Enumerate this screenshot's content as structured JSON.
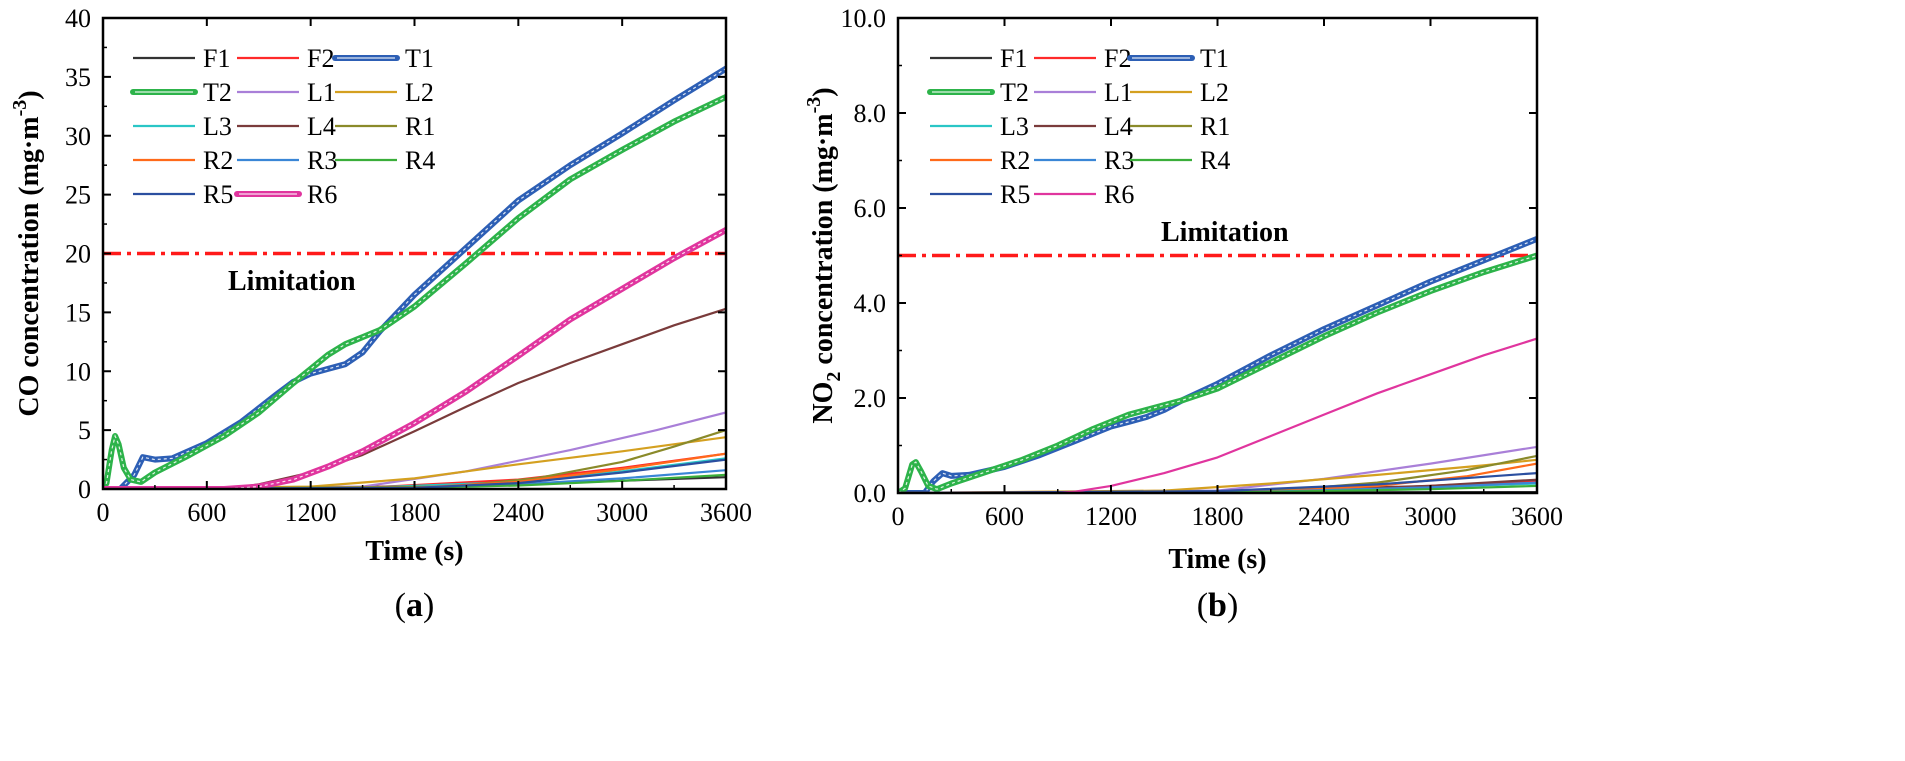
{
  "chart_data": [
    {
      "type": "line",
      "panel_label": "(a)",
      "panel_letter": "a",
      "xlabel": "Time (s)",
      "ylabel": "CO concentration (mg·m",
      "ylabel_sup": "-3",
      "ylabel_end": ")",
      "xlim": [
        0,
        3600
      ],
      "ylim": [
        0,
        40
      ],
      "xticks": [
        0,
        600,
        1200,
        1800,
        2400,
        3000,
        3600
      ],
      "xtick_labels": [
        "0",
        "600",
        "1200",
        "1800",
        "2400",
        "3000",
        "3600"
      ],
      "yticks": [
        0,
        5,
        10,
        15,
        20,
        25,
        30,
        35,
        40
      ],
      "ytick_labels": [
        "0",
        "5",
        "10",
        "15",
        "20",
        "25",
        "30",
        "35",
        "40"
      ],
      "limitation": {
        "value": 20,
        "label": "Limitation",
        "color": "#ff1a1a"
      },
      "series": [
        {
          "name": "F1",
          "color": "#333333",
          "x": [
            0,
            1200,
            2400,
            3600
          ],
          "y": [
            0,
            0.1,
            0.4,
            1.0
          ]
        },
        {
          "name": "F2",
          "color": "#ff2a2a",
          "x": [
            0,
            1500,
            2400,
            3000,
            3600
          ],
          "y": [
            0,
            0.1,
            0.8,
            1.8,
            3.0
          ]
        },
        {
          "name": "T1",
          "color": "#2d5fb5",
          "bold": true,
          "x": [
            0,
            100,
            180,
            230,
            300,
            400,
            600,
            800,
            1000,
            1100,
            1200,
            1300,
            1400,
            1500,
            1600,
            1800,
            2100,
            2400,
            2700,
            3000,
            3300,
            3600
          ],
          "y": [
            0,
            0,
            1.2,
            2.7,
            2.5,
            2.6,
            3.9,
            5.7,
            8.0,
            9.1,
            9.8,
            10.2,
            10.6,
            11.6,
            13.4,
            16.5,
            20.5,
            24.5,
            27.5,
            30.2,
            33.0,
            35.7
          ]
        },
        {
          "name": "T2",
          "color": "#2db34a",
          "bold": true,
          "x": [
            0,
            20,
            50,
            70,
            90,
            120,
            160,
            220,
            300,
            500,
            700,
            900,
            1100,
            1200,
            1300,
            1400,
            1500,
            1600,
            1800,
            2100,
            2400,
            2700,
            3000,
            3300,
            3600
          ],
          "y": [
            0,
            0.5,
            3.3,
            4.5,
            3.8,
            1.8,
            0.8,
            0.6,
            1.4,
            2.9,
            4.5,
            6.5,
            9.0,
            10.2,
            11.4,
            12.3,
            12.9,
            13.5,
            15.5,
            19.2,
            23.0,
            26.3,
            28.8,
            31.2,
            33.3
          ]
        },
        {
          "name": "L1",
          "color": "#a97fd8",
          "x": [
            0,
            1500,
            2100,
            2700,
            3200,
            3600
          ],
          "y": [
            0,
            0.2,
            1.5,
            3.3,
            5.0,
            6.5
          ]
        },
        {
          "name": "L2",
          "color": "#d4a020",
          "x": [
            0,
            1200,
            1800,
            2400,
            3000,
            3600
          ],
          "y": [
            0,
            0.2,
            0.9,
            2.1,
            3.2,
            4.4
          ]
        },
        {
          "name": "L3",
          "color": "#2ac6c6",
          "x": [
            0,
            1500,
            2400,
            3000,
            3600
          ],
          "y": [
            0,
            0.1,
            0.6,
            1.5,
            2.6
          ]
        },
        {
          "name": "L4",
          "color": "#7a3b3b",
          "x": [
            0,
            700,
            900,
            1200,
            1500,
            1800,
            2100,
            2400,
            2700,
            3000,
            3300,
            3600
          ],
          "y": [
            0,
            0,
            0.4,
            1.4,
            2.9,
            4.9,
            7.0,
            9.0,
            10.7,
            12.3,
            13.9,
            15.3
          ]
        },
        {
          "name": "R1",
          "color": "#8a8a2a",
          "x": [
            0,
            2000,
            2500,
            3000,
            3300,
            3600
          ],
          "y": [
            0,
            0.2,
            0.9,
            2.3,
            3.6,
            5.0
          ]
        },
        {
          "name": "R2",
          "color": "#ff6a1a",
          "x": [
            0,
            1800,
            2400,
            3000,
            3600
          ],
          "y": [
            0,
            0.1,
            0.6,
            1.7,
            3.0
          ]
        },
        {
          "name": "R3",
          "color": "#3a86d6",
          "x": [
            0,
            1800,
            2400,
            3000,
            3600
          ],
          "y": [
            0,
            0.1,
            0.4,
            0.9,
            1.6
          ]
        },
        {
          "name": "R4",
          "color": "#3aae3a",
          "x": [
            0,
            1800,
            2400,
            3000,
            3600
          ],
          "y": [
            0,
            0.1,
            0.3,
            0.7,
            1.2
          ]
        },
        {
          "name": "R5",
          "color": "#2b4fa0",
          "x": [
            0,
            1800,
            2400,
            3000,
            3600
          ],
          "y": [
            0,
            0.1,
            0.5,
            1.4,
            2.5
          ]
        },
        {
          "name": "R6",
          "color": "#e0359e",
          "bold": true,
          "x": [
            0,
            700,
            900,
            1100,
            1300,
            1500,
            1800,
            2100,
            2400,
            2700,
            3000,
            3300,
            3600
          ],
          "y": [
            0,
            0,
            0.2,
            0.8,
            1.9,
            3.2,
            5.6,
            8.3,
            11.3,
            14.4,
            17.0,
            19.6,
            22.0
          ]
        }
      ]
    },
    {
      "type": "line",
      "panel_label": "(b)",
      "panel_letter": "b",
      "xlabel": "Time (s)",
      "ylabel": "NO",
      "ylabel_sub": "2",
      "ylabel_end": " concentration (mg·m",
      "ylabel_sup": "-3",
      "ylabel_close": ")",
      "xlim": [
        0,
        3600
      ],
      "ylim": [
        0,
        10
      ],
      "xticks": [
        0,
        600,
        1200,
        1800,
        2400,
        3000,
        3600
      ],
      "xtick_labels": [
        "0",
        "600",
        "1200",
        "1800",
        "2400",
        "3000",
        "3600"
      ],
      "yticks": [
        0,
        2,
        4,
        6,
        8,
        10
      ],
      "ytick_labels": [
        "0.0",
        "2.0",
        "4.0",
        "6.0",
        "8.0",
        "10.0"
      ],
      "limitation": {
        "value": 5,
        "label": "Limitation",
        "color": "#ff1a1a"
      },
      "series": [
        {
          "name": "F1",
          "color": "#333333",
          "x": [
            0,
            1800,
            3600
          ],
          "y": [
            0,
            0.01,
            0.02
          ]
        },
        {
          "name": "F2",
          "color": "#ff2a2a",
          "x": [
            0,
            1800,
            2700,
            3600
          ],
          "y": [
            0,
            0.02,
            0.1,
            0.25
          ]
        },
        {
          "name": "T1",
          "color": "#2d5fb5",
          "bold": true,
          "x": [
            0,
            150,
            200,
            250,
            300,
            400,
            600,
            800,
            1000,
            1100,
            1200,
            1300,
            1400,
            1500,
            1600,
            1800,
            2100,
            2400,
            2700,
            3000,
            3300,
            3600
          ],
          "y": [
            0,
            0,
            0.25,
            0.42,
            0.36,
            0.38,
            0.55,
            0.8,
            1.1,
            1.25,
            1.4,
            1.5,
            1.6,
            1.75,
            1.95,
            2.3,
            2.9,
            3.45,
            3.95,
            4.45,
            4.9,
            5.35
          ]
        },
        {
          "name": "T2",
          "color": "#2db34a",
          "bold": true,
          "x": [
            0,
            40,
            80,
            100,
            130,
            170,
            220,
            300,
            500,
            700,
            900,
            1100,
            1200,
            1300,
            1400,
            1500,
            1600,
            1800,
            2100,
            2400,
            2700,
            3000,
            3300,
            3600
          ],
          "y": [
            0,
            0.1,
            0.6,
            0.65,
            0.45,
            0.15,
            0.08,
            0.2,
            0.45,
            0.7,
            1.0,
            1.35,
            1.5,
            1.65,
            1.75,
            1.85,
            1.95,
            2.2,
            2.75,
            3.3,
            3.8,
            4.25,
            4.65,
            5.0
          ]
        },
        {
          "name": "L1",
          "color": "#a97fd8",
          "x": [
            0,
            1800,
            2400,
            3000,
            3600
          ],
          "y": [
            0,
            0.05,
            0.3,
            0.62,
            0.97
          ]
        },
        {
          "name": "L2",
          "color": "#d4a020",
          "x": [
            0,
            1500,
            2100,
            2700,
            3300,
            3600
          ],
          "y": [
            0,
            0.05,
            0.2,
            0.38,
            0.58,
            0.7
          ]
        },
        {
          "name": "L3",
          "color": "#2ac6c6",
          "x": [
            0,
            1800,
            3000,
            3600
          ],
          "y": [
            0,
            0.02,
            0.12,
            0.2
          ]
        },
        {
          "name": "L4",
          "color": "#7a3b3b",
          "x": [
            0,
            1800,
            3000,
            3600
          ],
          "y": [
            0,
            0.03,
            0.15,
            0.28
          ]
        },
        {
          "name": "R1",
          "color": "#8a8a2a",
          "x": [
            0,
            2100,
            2700,
            3200,
            3600
          ],
          "y": [
            0,
            0.04,
            0.22,
            0.48,
            0.78
          ]
        },
        {
          "name": "R2",
          "color": "#ff6a1a",
          "x": [
            0,
            2100,
            2700,
            3200,
            3600
          ],
          "y": [
            0,
            0.03,
            0.15,
            0.35,
            0.62
          ]
        },
        {
          "name": "R3",
          "color": "#3a86d6",
          "x": [
            0,
            2000,
            3000,
            3600
          ],
          "y": [
            0,
            0.02,
            0.12,
            0.22
          ]
        },
        {
          "name": "R4",
          "color": "#3aae3a",
          "x": [
            0,
            2000,
            3000,
            3600
          ],
          "y": [
            0,
            0.02,
            0.08,
            0.15
          ]
        },
        {
          "name": "R5",
          "color": "#2b4fa0",
          "x": [
            0,
            1800,
            2700,
            3600
          ],
          "y": [
            0,
            0.04,
            0.18,
            0.42
          ]
        },
        {
          "name": "R6",
          "color": "#e0359e",
          "x": [
            0,
            900,
            1000,
            1200,
            1500,
            1800,
            2100,
            2400,
            2700,
            3000,
            3300,
            3600
          ],
          "y": [
            0,
            0,
            0.03,
            0.15,
            0.42,
            0.75,
            1.2,
            1.65,
            2.1,
            2.5,
            2.9,
            3.25
          ]
        }
      ]
    }
  ]
}
